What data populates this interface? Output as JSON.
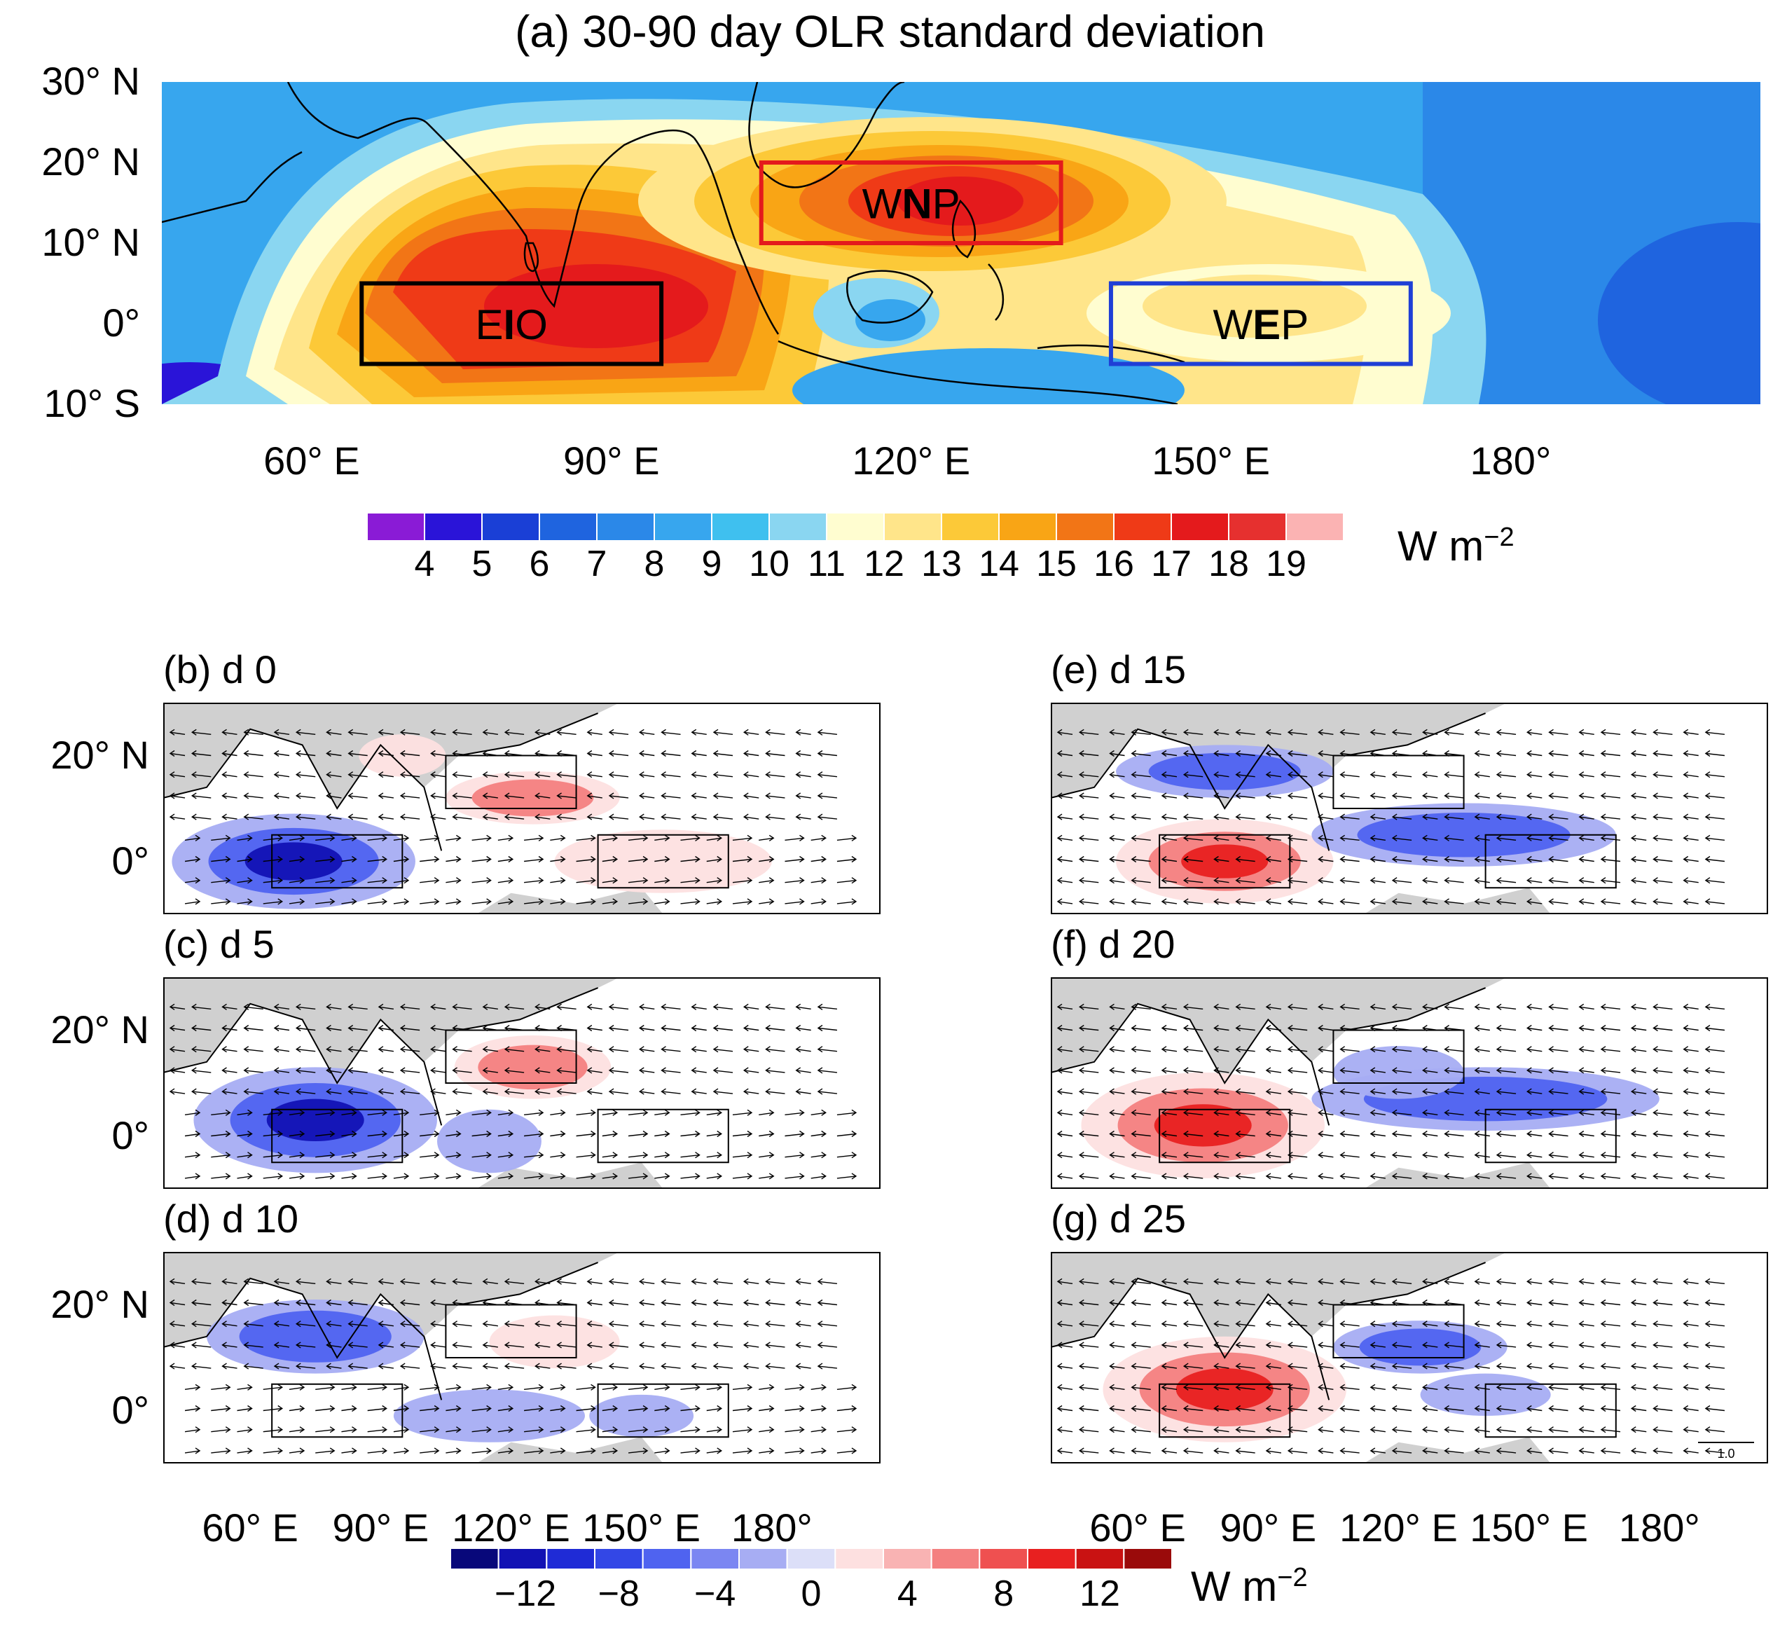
{
  "figure": {
    "title_a": "(a) 30-90 day OLR standard deviation",
    "panel_a": {
      "lat_labels": [
        "30° N",
        "20° N",
        "10° N",
        "0°",
        "10° S"
      ],
      "lon_labels": [
        "60° E",
        "90° E",
        "120° E",
        "150° E",
        "180°"
      ],
      "boxes": [
        {
          "name": "EIO",
          "prefix": "E",
          "bold": "I",
          "suffix": "O",
          "color": "#000000",
          "lon": [
            65,
            95
          ],
          "lat": [
            -5,
            5
          ]
        },
        {
          "name": "WNP",
          "prefix": "W",
          "bold": "N",
          "suffix": "P",
          "color": "#e41a1c",
          "lon": [
            105,
            135
          ],
          "lat": [
            10,
            20
          ]
        },
        {
          "name": "WEP",
          "prefix": "W",
          "bold": "E",
          "suffix": "P",
          "color": "#1f3fd6",
          "lon": [
            140,
            170
          ],
          "lat": [
            -5,
            5
          ]
        }
      ]
    },
    "colorbar_a": {
      "labels": [
        "4",
        "5",
        "6",
        "7",
        "8",
        "9",
        "10",
        "11",
        "12",
        "13",
        "14",
        "15",
        "16",
        "17",
        "18",
        "19"
      ],
      "colors": [
        "#8a1bd6",
        "#2a14d8",
        "#1a3fd6",
        "#1f64df",
        "#2b88e8",
        "#37a6ee",
        "#3fc0ef",
        "#8ad6f1",
        "#fffdd0",
        "#ffe58a",
        "#fcc938",
        "#f9a515",
        "#f27516",
        "#ef3a17",
        "#e41a1c",
        "#e6302f",
        "#fbb3b3"
      ],
      "unit": "W m",
      "unit_exp": "−2"
    },
    "panels_bg": [
      {
        "title": "(b) d 0"
      },
      {
        "title": "(c) d 5"
      },
      {
        "title": "(d) d 10"
      },
      {
        "title": "(e) d 15"
      },
      {
        "title": "(f) d 20"
      },
      {
        "title": "(g) d 25"
      }
    ],
    "small_lat_labels": [
      "20° N",
      "0°"
    ],
    "small_lon_labels": [
      "60° E",
      "90° E",
      "120° E",
      "150° E",
      "180°"
    ],
    "colorbar_b": {
      "labels": [
        "−12",
        "−8",
        "−4",
        "0",
        "4",
        "8",
        "12"
      ],
      "colors": [
        "#08087a",
        "#1212b4",
        "#1f2bd6",
        "#3347e6",
        "#4f63f0",
        "#7b86f2",
        "#a7adf3",
        "#dcdff8",
        "#fde0e0",
        "#f9b3b3",
        "#f48080",
        "#ef5050",
        "#e82020",
        "#c91212",
        "#9a0a0a"
      ],
      "unit": "W m",
      "unit_exp": "−2"
    },
    "reference_vector": "1.0"
  }
}
